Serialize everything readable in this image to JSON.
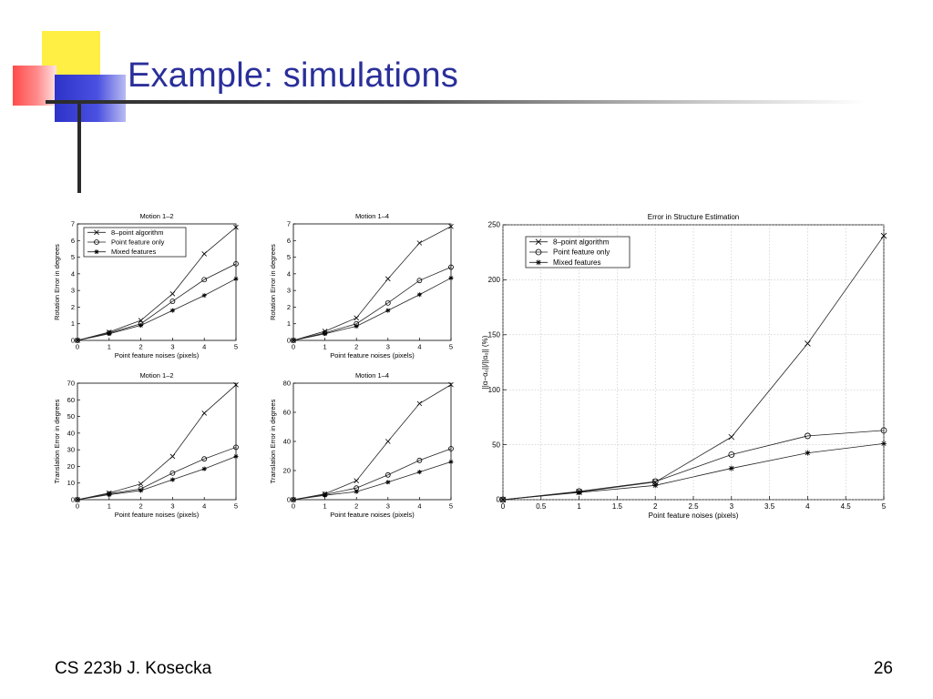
{
  "slide": {
    "title": "Example: simulations",
    "footer_left": "CS 223b J. Kosecka",
    "page_number": "26",
    "colors": {
      "title": "#2a2f9a",
      "yellow": "#ffee44",
      "red": "#ff5a5a",
      "blue": "#3a3fd0"
    }
  },
  "chart_data": [
    {
      "id": "c1",
      "type": "line",
      "title": "Motion 1–2",
      "xlabel": "Point feature noises (pixels)",
      "ylabel": "Rotation Error in degrees",
      "x": [
        0,
        1,
        2,
        3,
        4,
        5
      ],
      "xlim": [
        0,
        5
      ],
      "ylim": [
        0,
        7
      ],
      "xticks": [
        "0",
        "1",
        "2",
        "3",
        "4",
        "5"
      ],
      "yticks": [
        "0",
        "1",
        "2",
        "3",
        "4",
        "5",
        "6",
        "7"
      ],
      "grid": false,
      "legend": "top-left",
      "series": [
        {
          "name": "8–point algorithm",
          "marker": "x",
          "values": [
            0,
            0.5,
            1.2,
            2.8,
            5.2,
            6.8
          ]
        },
        {
          "name": "Point feature only",
          "marker": "o",
          "values": [
            0,
            0.45,
            1.0,
            2.35,
            3.65,
            4.6
          ]
        },
        {
          "name": "Mixed features",
          "marker": "*",
          "values": [
            0,
            0.4,
            0.9,
            1.8,
            2.7,
            3.7
          ]
        }
      ]
    },
    {
      "id": "c2",
      "type": "line",
      "title": "Motion 1–4",
      "xlabel": "Point feature noises (pixels)",
      "ylabel": "Rotation Error in degrees",
      "x": [
        0,
        1,
        2,
        3,
        4,
        5
      ],
      "xlim": [
        0,
        5
      ],
      "ylim": [
        0,
        7
      ],
      "xticks": [
        "0",
        "1",
        "2",
        "3",
        "4",
        "5"
      ],
      "yticks": [
        "0",
        "1",
        "2",
        "3",
        "4",
        "5",
        "6",
        "7"
      ],
      "grid": false,
      "legend": "none",
      "series": [
        {
          "name": "8–point algorithm",
          "marker": "x",
          "values": [
            0,
            0.55,
            1.35,
            3.7,
            5.85,
            6.85
          ]
        },
        {
          "name": "Point feature only",
          "marker": "o",
          "values": [
            0,
            0.45,
            1.0,
            2.25,
            3.6,
            4.4
          ]
        },
        {
          "name": "Mixed features",
          "marker": "*",
          "values": [
            0,
            0.4,
            0.85,
            1.8,
            2.75,
            3.75
          ]
        }
      ]
    },
    {
      "id": "c3",
      "type": "line",
      "title": "Motion 1–2",
      "xlabel": "Point feature noises (pixels)",
      "ylabel": "Translation Error in degrees",
      "x": [
        0,
        1,
        2,
        3,
        4,
        5
      ],
      "xlim": [
        0,
        5
      ],
      "ylim": [
        0,
        70
      ],
      "xticks": [
        "0",
        "1",
        "2",
        "3",
        "4",
        "5"
      ],
      "yticks": [
        "0",
        "10",
        "20",
        "30",
        "40",
        "50",
        "60",
        "70"
      ],
      "grid": false,
      "legend": "none",
      "series": [
        {
          "name": "8–point algorithm",
          "marker": "x",
          "values": [
            0,
            4,
            9.5,
            26,
            52,
            69
          ]
        },
        {
          "name": "Point feature only",
          "marker": "o",
          "values": [
            0,
            3.5,
            6.5,
            16,
            24.5,
            31.5
          ]
        },
        {
          "name": "Mixed features",
          "marker": "*",
          "values": [
            0,
            3,
            5.5,
            12,
            18.5,
            26
          ]
        }
      ]
    },
    {
      "id": "c4",
      "type": "line",
      "title": "Motion 1–4",
      "xlabel": "Point feature noises (pixels)",
      "ylabel": "Translation Error in degrees",
      "x": [
        0,
        1,
        2,
        3,
        4,
        5
      ],
      "xlim": [
        0,
        5
      ],
      "ylim": [
        0,
        80
      ],
      "xticks": [
        "0",
        "1",
        "2",
        "3",
        "4",
        "5"
      ],
      "yticks": [
        "0",
        "20",
        "40",
        "60",
        "80"
      ],
      "grid": false,
      "legend": "none",
      "series": [
        {
          "name": "8–point algorithm",
          "marker": "x",
          "values": [
            0,
            4,
            13,
            40,
            66,
            79
          ]
        },
        {
          "name": "Point feature only",
          "marker": "o",
          "values": [
            0,
            3.5,
            8,
            17,
            27,
            35
          ]
        },
        {
          "name": "Mixed features",
          "marker": "*",
          "values": [
            0,
            3,
            5.5,
            12,
            19,
            26
          ]
        }
      ]
    },
    {
      "id": "c5",
      "type": "line",
      "title": "Error in Structure Estimation",
      "xlabel": "Point feature noises (pixels)",
      "ylabel": "||α−α₀||/||α₀|| (%)",
      "x": [
        0,
        1,
        2,
        3,
        4,
        5
      ],
      "xlim": [
        0,
        5
      ],
      "ylim": [
        0,
        250
      ],
      "xticks": [
        "0",
        "0.5",
        "1",
        "1.5",
        "2",
        "2.5",
        "3",
        "3.5",
        "4",
        "4.5",
        "5"
      ],
      "xtick_values": [
        0,
        0.5,
        1,
        1.5,
        2,
        2.5,
        3,
        3.5,
        4,
        4.5,
        5
      ],
      "yticks": [
        "0",
        "50",
        "100",
        "150",
        "200",
        "250"
      ],
      "grid": true,
      "legend": "top-left",
      "series": [
        {
          "name": "8–point algorithm",
          "marker": "x",
          "values": [
            0,
            7,
            16,
            57,
            142,
            240
          ]
        },
        {
          "name": "Point feature only",
          "marker": "o",
          "values": [
            0,
            7.5,
            16.5,
            41,
            58,
            63
          ]
        },
        {
          "name": "Mixed features",
          "marker": "*",
          "values": [
            0,
            6.5,
            13,
            28.5,
            42.5,
            51
          ]
        }
      ]
    }
  ]
}
